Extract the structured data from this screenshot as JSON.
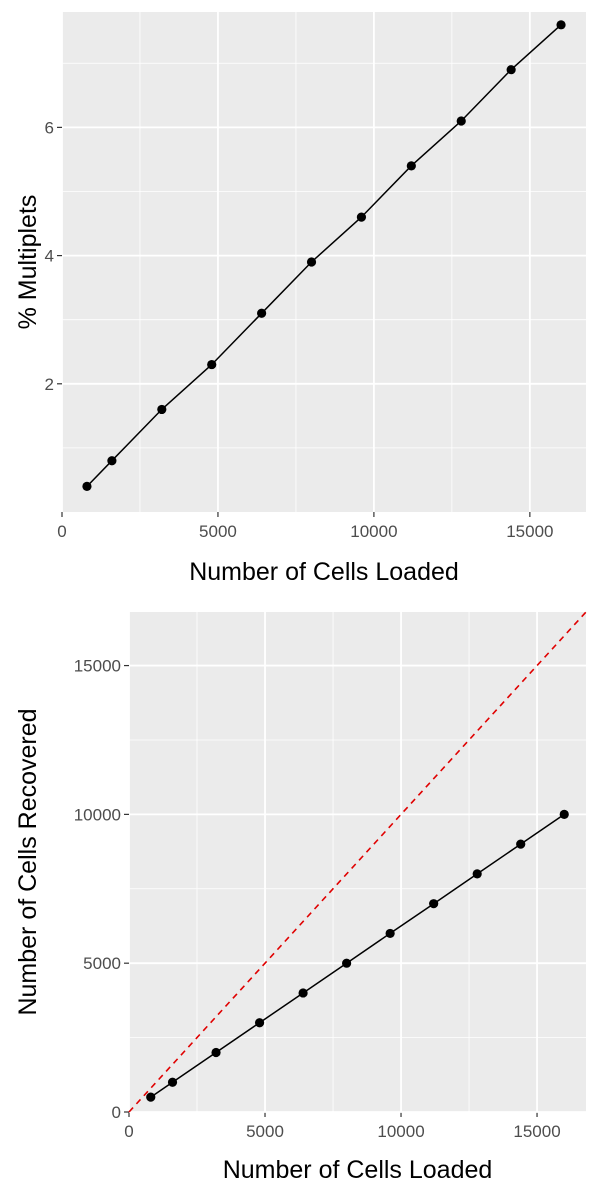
{
  "chart_data": [
    {
      "type": "line",
      "title": "",
      "xlabel": "Number of Cells Loaded",
      "ylabel": "% Multiplets",
      "xlim": [
        0,
        16800
      ],
      "ylim": [
        0,
        7.8
      ],
      "xticks": [
        0,
        5000,
        10000,
        15000
      ],
      "yticks": [
        2,
        4,
        6
      ],
      "grid": true,
      "background": "#ebebeb",
      "series": [
        {
          "color": "#000000",
          "x": [
            800,
            1600,
            3200,
            4800,
            6400,
            8000,
            9600,
            11200,
            12800,
            14400,
            16000
          ],
          "y": [
            0.4,
            0.8,
            1.6,
            2.3,
            3.1,
            3.9,
            4.6,
            5.4,
            6.1,
            6.9,
            7.6
          ]
        }
      ]
    },
    {
      "type": "line",
      "title": "",
      "xlabel": "Number of Cells Loaded",
      "ylabel": "Number of Cells Recovered",
      "xlim": [
        0,
        16800
      ],
      "ylim": [
        0,
        16800
      ],
      "xticks": [
        0,
        5000,
        10000,
        15000
      ],
      "yticks": [
        0,
        5000,
        10000,
        15000
      ],
      "grid": true,
      "background": "#ebebeb",
      "series": [
        {
          "color": "#000000",
          "x": [
            800,
            1600,
            3200,
            4800,
            6400,
            8000,
            9600,
            11200,
            12800,
            14400,
            16000
          ],
          "y": [
            500,
            1000,
            2000,
            3000,
            4000,
            5000,
            6000,
            7000,
            8000,
            9000,
            10000
          ]
        }
      ],
      "reference_line": {
        "slope": 1,
        "intercept": 0,
        "style": "dashed",
        "color": "#e00000"
      }
    }
  ]
}
